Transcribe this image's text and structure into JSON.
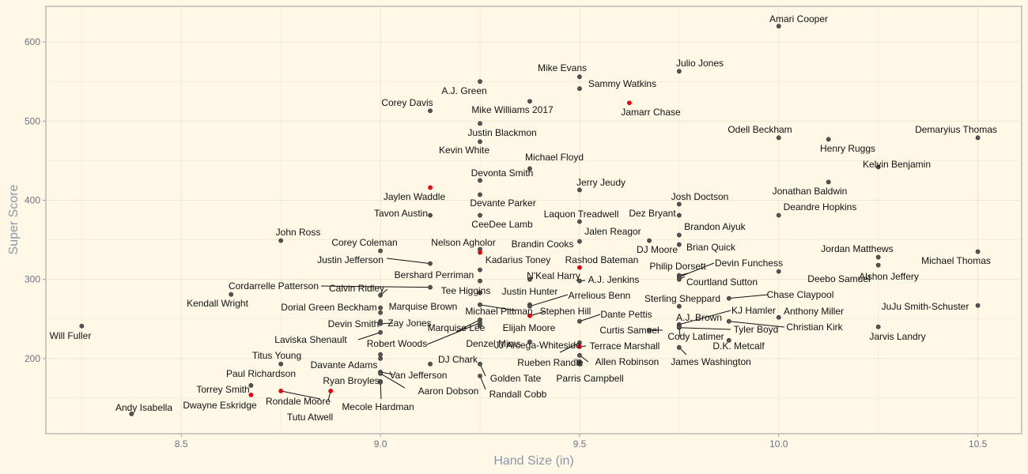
{
  "chart_data": {
    "type": "scatter",
    "title": "",
    "xlabel": "Hand Size (in)",
    "ylabel": "Super Score",
    "xlim": [
      8.16,
      10.61
    ],
    "ylim": [
      105,
      645
    ],
    "x_ticks": [
      8.5,
      9.0,
      9.5,
      10.0,
      10.5
    ],
    "x_tick_labels": [
      "8.5",
      "9.0",
      "9.5",
      "10.0",
      "10.5"
    ],
    "y_ticks": [
      200,
      300,
      400,
      500,
      600
    ],
    "y_tick_labels": [
      "200",
      "300",
      "400",
      "500",
      "600"
    ],
    "grid": true,
    "legend": "none",
    "colors": {
      "background": "#fff8e7",
      "grid": "#efe6d0",
      "point": "#555555",
      "highlight": "#e8000b",
      "axis_text": "#6b7280",
      "axis_title": "#8a97a8",
      "label": "#111111",
      "leader": "#111111"
    },
    "points": [
      {
        "name": "Amari Cooper",
        "x": 10.0,
        "y": 620,
        "highlight": false
      },
      {
        "name": "Julio Jones",
        "x": 9.75,
        "y": 563,
        "highlight": false
      },
      {
        "name": "Mike Evans",
        "x": 9.5,
        "y": 556,
        "highlight": false
      },
      {
        "name": "Sammy Watkins",
        "x": 9.5,
        "y": 541,
        "highlight": false
      },
      {
        "name": "A.J. Green",
        "x": 9.25,
        "y": 550,
        "highlight": false
      },
      {
        "name": "Corey Davis",
        "x": 9.125,
        "y": 513,
        "highlight": false
      },
      {
        "name": "Mike Williams 2017",
        "x": 9.375,
        "y": 525,
        "highlight": false
      },
      {
        "name": "Jamarr Chase",
        "x": 9.625,
        "y": 523,
        "highlight": true
      },
      {
        "name": "Justin Blackmon",
        "x": 9.25,
        "y": 497,
        "highlight": false
      },
      {
        "name": "Kevin White",
        "x": 9.25,
        "y": 474,
        "highlight": false
      },
      {
        "name": "Odell Beckham",
        "x": 10.0,
        "y": 479,
        "highlight": false
      },
      {
        "name": "Henry Ruggs",
        "x": 10.125,
        "y": 477,
        "highlight": false
      },
      {
        "name": "Demaryius Thomas",
        "x": 10.5,
        "y": 479,
        "highlight": false
      },
      {
        "name": "Kelvin Benjamin",
        "x": 10.25,
        "y": 442,
        "highlight": false
      },
      {
        "name": "Michael Floyd",
        "x": 9.375,
        "y": 440,
        "highlight": false
      },
      {
        "name": "Devonta Smith",
        "x": 9.25,
        "y": 425,
        "highlight": false
      },
      {
        "name": "Jaylen Waddle",
        "x": 9.125,
        "y": 416,
        "highlight": true
      },
      {
        "name": "Jerry Jeudy",
        "x": 9.5,
        "y": 413,
        "highlight": false
      },
      {
        "name": "Jonathan Baldwin",
        "x": 10.125,
        "y": 423,
        "highlight": false
      },
      {
        "name": "Devante Parker",
        "x": 9.25,
        "y": 407,
        "highlight": false
      },
      {
        "name": "Josh Doctson",
        "x": 9.75,
        "y": 395,
        "highlight": false
      },
      {
        "name": "Deandre Hopkins",
        "x": 10.0,
        "y": 381,
        "highlight": false
      },
      {
        "name": "Tavon Austin",
        "x": 9.125,
        "y": 381,
        "highlight": false
      },
      {
        "name": "CeeDee Lamb",
        "x": 9.25,
        "y": 381,
        "highlight": false
      },
      {
        "name": "Laquon Treadwell",
        "x": 9.5,
        "y": 373,
        "highlight": false
      },
      {
        "name": "Dez Bryant",
        "x": 9.75,
        "y": 381,
        "highlight": false
      },
      {
        "name": "John Ross",
        "x": 8.75,
        "y": 349,
        "highlight": false
      },
      {
        "name": "Jalen Reagor",
        "x": 9.5,
        "y": 348,
        "highlight": false
      },
      {
        "name": "Brandon Aiyuk",
        "x": 9.75,
        "y": 356,
        "highlight": false
      },
      {
        "name": "Corey Coleman",
        "x": 9.0,
        "y": 336,
        "highlight": false
      },
      {
        "name": "Nelson Agholor",
        "x": 9.25,
        "y": 338,
        "highlight": false
      },
      {
        "name": "Brandin Cooks",
        "x": 9.25,
        "y": 334,
        "highlight": true
      },
      {
        "name": "Brian Quick",
        "x": 9.75,
        "y": 344,
        "highlight": false
      },
      {
        "name": "DJ Moore",
        "x": 9.675,
        "y": 349,
        "highlight": false
      },
      {
        "name": "Jordan Matthews",
        "x": 10.25,
        "y": 328,
        "highlight": false
      },
      {
        "name": "Michael Thomas",
        "x": 10.5,
        "y": 335,
        "highlight": false
      },
      {
        "name": "Justin Jefferson",
        "x": 9.125,
        "y": 320,
        "highlight": false
      },
      {
        "name": "Kadarius Toney",
        "x": 9.25,
        "y": 312,
        "highlight": false
      },
      {
        "name": "Rashod Bateman",
        "x": 9.5,
        "y": 315,
        "highlight": true
      },
      {
        "name": "Philip Dorsett",
        "x": 9.75,
        "y": 305,
        "highlight": false
      },
      {
        "name": "Devin Funchess",
        "x": 9.75,
        "y": 303,
        "highlight": false
      },
      {
        "name": "Alshon Jeffery",
        "x": 10.25,
        "y": 318,
        "highlight": false
      },
      {
        "name": "Bershard Perriman",
        "x": 9.25,
        "y": 298,
        "highlight": false
      },
      {
        "name": "N'Keal Harry",
        "x": 9.375,
        "y": 300,
        "highlight": false
      },
      {
        "name": "A.J. Jenkins",
        "x": 9.5,
        "y": 298,
        "highlight": false
      },
      {
        "name": "Courtland Sutton",
        "x": 9.75,
        "y": 300,
        "highlight": false
      },
      {
        "name": "Deebo Samuel",
        "x": 10.0,
        "y": 310,
        "highlight": false
      },
      {
        "name": "Cordarrelle Patterson",
        "x": 9.125,
        "y": 290,
        "highlight": false
      },
      {
        "name": "Calvin Ridley",
        "x": 9.0,
        "y": 280,
        "highlight": false
      },
      {
        "name": "Tee Higgins",
        "x": 9.25,
        "y": 283,
        "highlight": false
      },
      {
        "name": "Kendall Wright",
        "x": 8.625,
        "y": 281,
        "highlight": false
      },
      {
        "name": "Justin Hunter",
        "x": 9.375,
        "y": 268,
        "highlight": false
      },
      {
        "name": "Arrelious Benn",
        "x": 9.375,
        "y": 266,
        "highlight": false
      },
      {
        "name": "Sterling Sheppard",
        "x": 9.75,
        "y": 266,
        "highlight": false
      },
      {
        "name": "Chase Claypool",
        "x": 9.875,
        "y": 276,
        "highlight": false
      },
      {
        "name": "Dorial Green Beckham",
        "x": 9.0,
        "y": 264,
        "highlight": false
      },
      {
        "name": "Marquise Brown",
        "x": 9.0,
        "y": 258,
        "highlight": false
      },
      {
        "name": "Michael Pittman",
        "x": 9.25,
        "y": 268,
        "highlight": false
      },
      {
        "name": "Stephen Hill",
        "x": 9.375,
        "y": 254,
        "highlight": true
      },
      {
        "name": "JuJu Smith-Schuster",
        "x": 10.5,
        "y": 267,
        "highlight": false
      },
      {
        "name": "KJ Hamler",
        "x": 9.75,
        "y": 243,
        "highlight": false
      },
      {
        "name": "Anthony Miller",
        "x": 10.0,
        "y": 252,
        "highlight": false
      },
      {
        "name": "Dante Pettis",
        "x": 9.5,
        "y": 247,
        "highlight": false
      },
      {
        "name": "A.J. Brown",
        "x": 9.75,
        "y": 241,
        "highlight": false
      },
      {
        "name": "Devin Smith",
        "x": 9.0,
        "y": 247,
        "highlight": false
      },
      {
        "name": "Zay Jones",
        "x": 9.0,
        "y": 244,
        "highlight": false
      },
      {
        "name": "Christian Kirk",
        "x": 9.875,
        "y": 247,
        "highlight": false
      },
      {
        "name": "Will Fuller",
        "x": 8.25,
        "y": 241,
        "highlight": false
      },
      {
        "name": "Marquise Lee",
        "x": 9.25,
        "y": 249,
        "highlight": false
      },
      {
        "name": "Elijah Moore",
        "x": 9.25,
        "y": 242,
        "highlight": false
      },
      {
        "name": "Curtis Samuel",
        "x": 9.675,
        "y": 236,
        "highlight": false
      },
      {
        "name": "Tyler Boyd",
        "x": 9.75,
        "y": 239,
        "highlight": false
      },
      {
        "name": "Jarvis Landry",
        "x": 10.25,
        "y": 240,
        "highlight": false
      },
      {
        "name": "Laviska Shenault",
        "x": 9.0,
        "y": 233,
        "highlight": false
      },
      {
        "name": "Cody Latimer",
        "x": 9.75,
        "y": 240,
        "highlight": false
      },
      {
        "name": "Robert Woods",
        "x": 9.25,
        "y": 245,
        "highlight": false
      },
      {
        "name": "D.K. Metcalf",
        "x": 9.875,
        "y": 223,
        "highlight": false
      },
      {
        "name": "Denzel Mims",
        "x": 9.375,
        "y": 221,
        "highlight": false
      },
      {
        "name": "JJ Arcega-Whiteside",
        "x": 9.5,
        "y": 220,
        "highlight": false
      },
      {
        "name": "Terrace Marshall",
        "x": 9.5,
        "y": 215,
        "highlight": true
      },
      {
        "name": "James Washington",
        "x": 9.75,
        "y": 214,
        "highlight": false
      },
      {
        "name": "Titus Young",
        "x": 9.0,
        "y": 205,
        "highlight": false
      },
      {
        "name": "DJ Chark",
        "x": 9.125,
        "y": 193,
        "highlight": false
      },
      {
        "name": "Allen Robinson",
        "x": 9.5,
        "y": 204,
        "highlight": false
      },
      {
        "name": "Rueben Randle",
        "x": 9.5,
        "y": 196,
        "highlight": false
      },
      {
        "name": "Davante Adams",
        "x": 9.0,
        "y": 200,
        "highlight": false
      },
      {
        "name": "Parris Campbell",
        "x": 9.5,
        "y": 193,
        "highlight": false
      },
      {
        "name": "Paul Richardson",
        "x": 8.75,
        "y": 193,
        "highlight": false
      },
      {
        "name": "Van Jefferson",
        "x": 9.0,
        "y": 183,
        "highlight": false
      },
      {
        "name": "Golden Tate",
        "x": 9.25,
        "y": 193,
        "highlight": false
      },
      {
        "name": "Aaron Dobson",
        "x": 9.0,
        "y": 181,
        "highlight": false
      },
      {
        "name": "Ryan Broyles",
        "x": 9.0,
        "y": 171,
        "highlight": false
      },
      {
        "name": "Randall Cobb",
        "x": 9.25,
        "y": 178,
        "highlight": false
      },
      {
        "name": "Torrey Smith",
        "x": 8.675,
        "y": 166,
        "highlight": false
      },
      {
        "name": "Mecole Hardman",
        "x": 9.0,
        "y": 170,
        "highlight": false
      },
      {
        "name": "Rondale Moore",
        "x": 8.75,
        "y": 159,
        "highlight": true
      },
      {
        "name": "Dwayne Eskridge",
        "x": 8.675,
        "y": 154,
        "highlight": true
      },
      {
        "name": "Tutu Atwell",
        "x": 8.875,
        "y": 159,
        "highlight": true
      },
      {
        "name": "Andy Isabella",
        "x": 8.375,
        "y": 130,
        "highlight": false
      }
    ]
  }
}
